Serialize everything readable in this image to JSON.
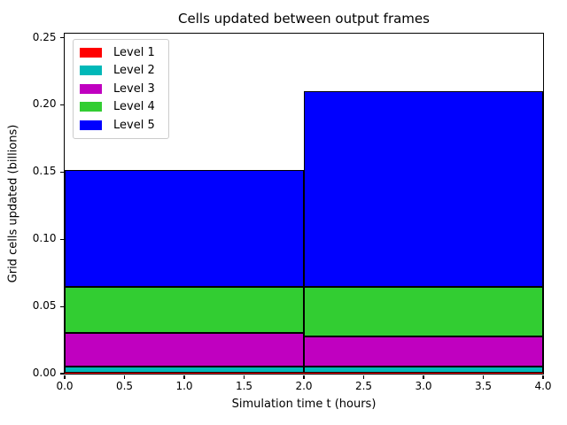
{
  "chart_data": {
    "type": "bar",
    "stacked": true,
    "title": "Cells updated between output frames",
    "xlabel": "Simulation time t (hours)",
    "ylabel": "Grid cells updated (billions)",
    "xlim": [
      0,
      4
    ],
    "ylim": [
      0,
      0.253
    ],
    "grid": false,
    "bar_edge_color": "#000000",
    "bar_spans": [
      {
        "from": 0.0,
        "to": 2.0
      },
      {
        "from": 2.0,
        "to": 4.0
      }
    ],
    "xticks": [
      0.0,
      0.5,
      1.0,
      1.5,
      2.0,
      2.5,
      3.0,
      3.5,
      4.0
    ],
    "xtick_labels": [
      "0.0",
      "0.5",
      "1.0",
      "1.5",
      "2.0",
      "2.5",
      "3.0",
      "3.5",
      "4.0"
    ],
    "yticks": [
      0.0,
      0.05,
      0.1,
      0.15,
      0.2,
      0.25
    ],
    "ytick_labels": [
      "0.00",
      "0.05",
      "0.10",
      "0.15",
      "0.20",
      "0.25"
    ],
    "series": [
      {
        "name": "Level 1",
        "color": "#ff0000",
        "values": [
          0.0004,
          0.0004
        ]
      },
      {
        "name": "Level 2",
        "color": "#00b8b8",
        "values": [
          0.005,
          0.005
        ]
      },
      {
        "name": "Level 3",
        "color": "#c000c0",
        "values": [
          0.025,
          0.022
        ]
      },
      {
        "name": "Level 4",
        "color": "#32cd32",
        "values": [
          0.034,
          0.037
        ]
      },
      {
        "name": "Level 5",
        "color": "#0000ff",
        "values": [
          0.087,
          0.146
        ]
      }
    ],
    "stack_totals": [
      0.151,
      0.21
    ],
    "legend": {
      "position": "upper left",
      "entries": [
        "Level 1",
        "Level 2",
        "Level 3",
        "Level 4",
        "Level 5"
      ]
    }
  }
}
